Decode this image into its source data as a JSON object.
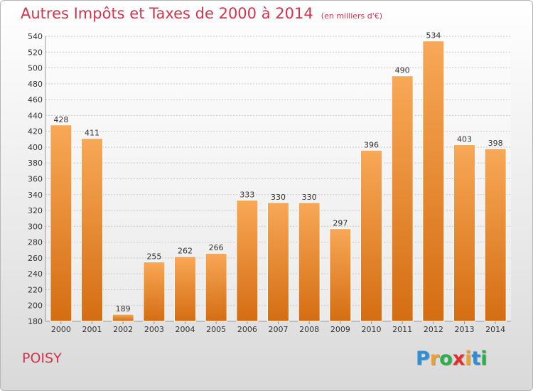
{
  "header": {
    "title": "Autres Impôts et Taxes de 2000 à 2014",
    "unit": "(en milliers d'€)"
  },
  "footer": {
    "place": "POISY",
    "logo": {
      "letters": [
        "P",
        "r",
        "o",
        "x",
        "i",
        "t",
        "i"
      ],
      "colors": [
        "#2e8fd6",
        "#f0a02a",
        "#2ab04a",
        "#e0302e",
        "#f0a02a",
        "#2e8fd6",
        "#2ab04a"
      ]
    }
  },
  "colors": {
    "bar_top": "#f8a857",
    "bar_bottom": "#d46d12",
    "title": "#d2344d"
  },
  "chart_data": {
    "type": "bar",
    "title": "Autres Impôts et Taxes de 2000 à 2014",
    "categories": [
      "2000",
      "2001",
      "2002",
      "2003",
      "2004",
      "2005",
      "2006",
      "2007",
      "2008",
      "2009",
      "2010",
      "2011",
      "2012",
      "2013",
      "2014"
    ],
    "values": [
      428,
      411,
      189,
      255,
      262,
      266,
      333,
      330,
      330,
      297,
      396,
      490,
      534,
      403,
      398
    ],
    "ylim": [
      180,
      540
    ],
    "yticks": [
      180,
      200,
      220,
      240,
      260,
      280,
      300,
      320,
      340,
      360,
      380,
      400,
      420,
      440,
      460,
      480,
      500,
      520,
      540
    ],
    "grid": true
  }
}
